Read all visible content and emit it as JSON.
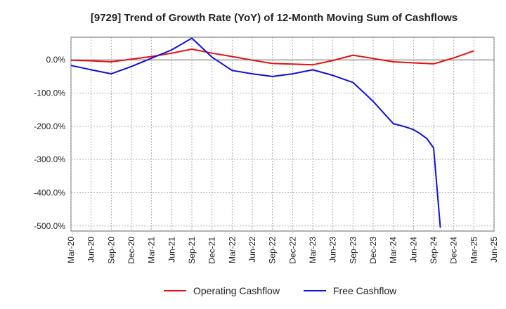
{
  "chart_data": {
    "type": "line",
    "title": "[9729]  Trend of Growth Rate (YoY) of 12-Month Moving Sum of Cashflows",
    "xlabel": "",
    "ylabel": "",
    "x_ticks": [
      "Mar-20",
      "Jun-20",
      "Sep-20",
      "Dec-20",
      "Mar-21",
      "Jun-21",
      "Sep-21",
      "Dec-21",
      "Mar-22",
      "Jun-22",
      "Sep-22",
      "Dec-22",
      "Mar-23",
      "Jun-23",
      "Sep-23",
      "Dec-23",
      "Mar-24",
      "Jun-24",
      "Sep-24",
      "Dec-24",
      "Mar-25",
      "Jun-25"
    ],
    "y_ticks": [
      0,
      -100,
      -200,
      -300,
      -400,
      -500
    ],
    "y_tick_labels": [
      "0.0%",
      "-100.0%",
      "-200.0%",
      "-300.0%",
      "-400.0%",
      "-500.0%"
    ],
    "ylim": [
      -515,
      68
    ],
    "grid": true,
    "legend_position": "bottom",
    "series": [
      {
        "name": "Operating Cashflow",
        "color": "#e8100e",
        "points": [
          [
            "Mar-20",
            -1
          ],
          [
            "Jun-20",
            -3
          ],
          [
            "Sep-20",
            -6
          ],
          [
            "Dec-20",
            2
          ],
          [
            "Mar-21",
            10
          ],
          [
            "Jun-21",
            20
          ],
          [
            "Sep-21",
            32
          ],
          [
            "Dec-21",
            20
          ],
          [
            "Mar-22",
            10
          ],
          [
            "Jun-22",
            -1
          ],
          [
            "Sep-22",
            -11
          ],
          [
            "Dec-22",
            -13
          ],
          [
            "Mar-23",
            -15
          ],
          [
            "Jun-23",
            -2
          ],
          [
            "Sep-23",
            14
          ],
          [
            "Dec-23",
            4
          ],
          [
            "Mar-24",
            -6
          ],
          [
            "Jun-24",
            -9
          ],
          [
            "Sep-24",
            -12
          ],
          [
            "Dec-24",
            6
          ],
          [
            "Mar-25",
            27
          ]
        ]
      },
      {
        "name": "Free Cashflow",
        "color": "#1010e0",
        "points": [
          [
            "Mar-20",
            -17
          ],
          [
            "Jun-20",
            -30
          ],
          [
            "Sep-20",
            -42
          ],
          [
            "Dec-20",
            -20
          ],
          [
            "Mar-21",
            5
          ],
          [
            "Jun-21",
            30
          ],
          [
            "Sep-21",
            65
          ],
          [
            "Dec-21",
            8
          ],
          [
            "Mar-22",
            -32
          ],
          [
            "Jun-22",
            -42
          ],
          [
            "Sep-22",
            -50
          ],
          [
            "Dec-22",
            -42
          ],
          [
            "Mar-23",
            -30
          ],
          [
            "Jun-23",
            -47
          ],
          [
            "Sep-23",
            -68
          ],
          [
            "Dec-23",
            -125
          ],
          [
            "Mar-24",
            -192
          ],
          [
            "Apr-24",
            -197
          ],
          [
            "May-24",
            -203
          ],
          [
            "Jun-24",
            -210
          ],
          [
            "Jul-24",
            -222
          ],
          [
            "Aug-24",
            -237
          ],
          [
            "Sep-24",
            -265
          ],
          [
            "Oct-24",
            -505
          ]
        ]
      }
    ]
  }
}
